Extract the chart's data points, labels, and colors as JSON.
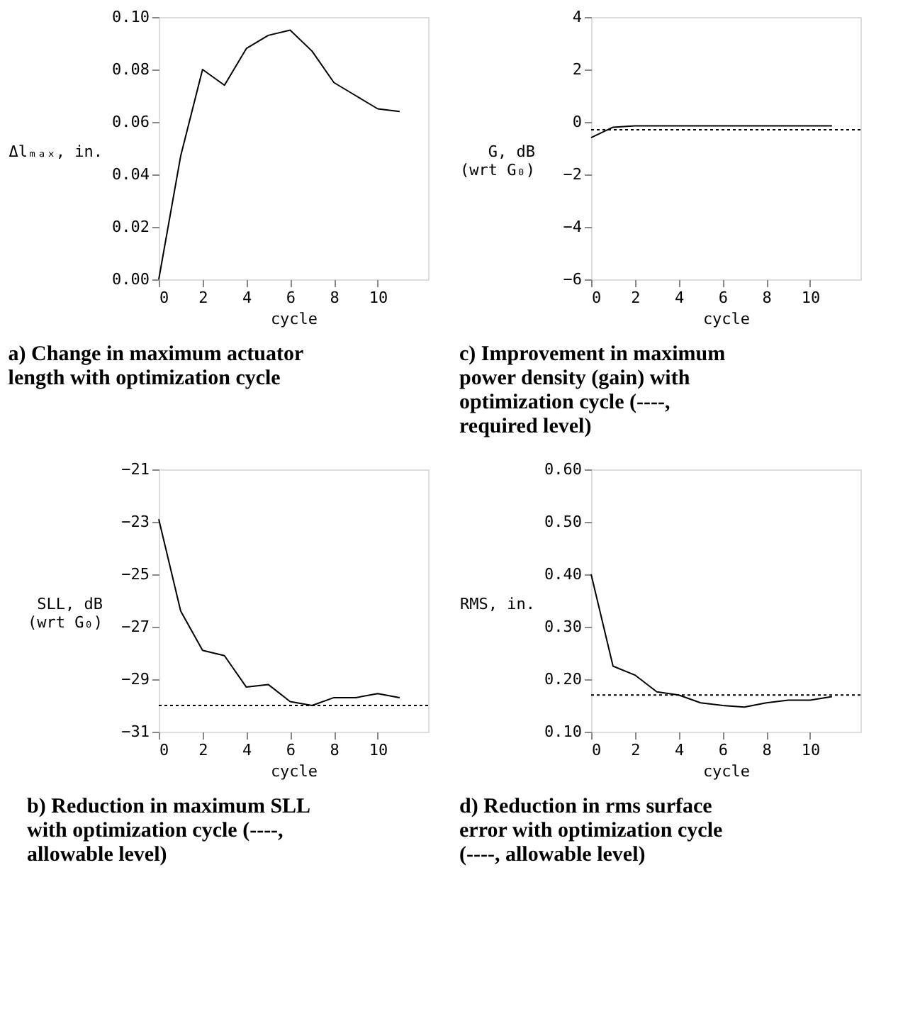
{
  "chart_data": [
    {
      "type": "line",
      "title": "a)  Change in maximum actuator length with optimization cycle",
      "xlabel": "cycle",
      "ylabel": "Δlₘₐₓ, in.",
      "x": [
        0,
        1,
        2,
        3,
        4,
        5,
        6,
        7,
        8,
        9,
        10,
        11
      ],
      "series": [
        {
          "color": "#000000",
          "values": [
            0.0,
            0.047,
            0.08,
            0.074,
            0.088,
            0.093,
            0.095,
            0.087,
            0.075,
            0.07,
            0.065,
            0.064
          ]
        }
      ],
      "xlim": [
        0,
        12.3
      ],
      "xticks": [
        0,
        2,
        4,
        6,
        8,
        10
      ],
      "ylim": [
        0,
        0.1
      ],
      "yticks": [
        {
          "value": 0,
          "label": "0.00"
        },
        {
          "value": 0.02,
          "label": "0.02"
        },
        {
          "value": 0.04,
          "label": "0.04"
        },
        {
          "value": 0.06,
          "label": "0.06"
        },
        {
          "value": 0.08,
          "label": "0.08"
        },
        {
          "value": 0.1,
          "label": "0.10"
        }
      ],
      "line_style": "solid"
    },
    {
      "type": "line",
      "title": "c)  Improvement in maximum power density (gain) with optimization cycle (----, required level)",
      "xlabel": "cycle",
      "ylabel": "G, dB\n(wrt G₀)",
      "x": [
        0,
        1,
        2,
        3,
        4,
        5,
        6,
        7,
        8,
        9,
        10,
        11
      ],
      "series": [
        {
          "color": "#000000",
          "values": [
            -0.6,
            -0.2,
            -0.15,
            -0.15,
            -0.15,
            -0.15,
            -0.15,
            -0.15,
            -0.15,
            -0.15,
            -0.15,
            -0.15
          ]
        }
      ],
      "xlim": [
        0,
        12.3
      ],
      "xticks": [
        0,
        2,
        4,
        6,
        8,
        10
      ],
      "ylim": [
        -6,
        4
      ],
      "yticks": [
        -6,
        -4,
        -2,
        0,
        2,
        4
      ],
      "ref_lines": [
        {
          "axis": "y",
          "value": -0.3,
          "line_style": "dotted",
          "color": "#000000"
        }
      ],
      "line_style": "solid"
    },
    {
      "type": "line",
      "title": "b)  Reduction in maximum SLL with optimization cycle (----, allowable level)",
      "xlabel": "cycle",
      "ylabel": "SLL, dB\n(wrt G₀)",
      "x": [
        0,
        1,
        2,
        3,
        4,
        5,
        6,
        7,
        8,
        9,
        10,
        11
      ],
      "series": [
        {
          "color": "#000000",
          "values": [
            -22.9,
            -26.4,
            -27.9,
            -28.1,
            -29.3,
            -29.2,
            -29.85,
            -30.0,
            -29.7,
            -29.7,
            -29.55,
            -29.7
          ]
        }
      ],
      "xlim": [
        0,
        12.3
      ],
      "xticks": [
        0,
        2,
        4,
        6,
        8,
        10
      ],
      "ylim": [
        -31,
        -21
      ],
      "yticks": [
        -31,
        -29,
        -27,
        -25,
        -23,
        -21
      ],
      "ref_lines": [
        {
          "axis": "y",
          "value": -30,
          "line_style": "dotted",
          "color": "#000000"
        }
      ],
      "line_style": "solid"
    },
    {
      "type": "line",
      "title": "d)  Reduction in rms surface error with optimization cycle (----, allowable level)",
      "xlabel": "cycle",
      "ylabel": "RMS, in.",
      "x": [
        0,
        1,
        2,
        3,
        4,
        5,
        6,
        7,
        8,
        9,
        10,
        11
      ],
      "series": [
        {
          "color": "#000000",
          "values": [
            0.4,
            0.225,
            0.208,
            0.176,
            0.17,
            0.155,
            0.15,
            0.147,
            0.155,
            0.16,
            0.16,
            0.167
          ]
        }
      ],
      "xlim": [
        0,
        12.3
      ],
      "xticks": [
        0,
        2,
        4,
        6,
        8,
        10
      ],
      "ylim": [
        0.1,
        0.6
      ],
      "yticks": [
        {
          "value": 0.1,
          "label": "0.10"
        },
        {
          "value": 0.2,
          "label": "0.20"
        },
        {
          "value": 0.3,
          "label": "0.30"
        },
        {
          "value": 0.4,
          "label": "0.40"
        },
        {
          "value": 0.5,
          "label": "0.50"
        },
        {
          "value": 0.6,
          "label": "0.60"
        }
      ],
      "ref_lines": [
        {
          "axis": "y",
          "value": 0.17,
          "line_style": "dotted",
          "color": "#000000"
        }
      ],
      "line_style": "solid"
    }
  ]
}
